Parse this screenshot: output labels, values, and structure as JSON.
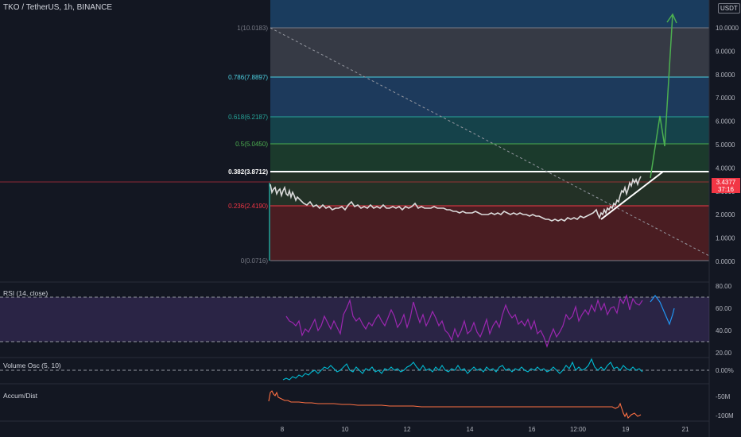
{
  "header": {
    "symbol_line": "TKO / TetherUS, 1h, BINANCE",
    "currency_badge": "USDT"
  },
  "price_axis": {
    "ticks": [
      "10.0000",
      "9.0000",
      "8.0000",
      "7.0000",
      "6.0000",
      "5.0000",
      "4.0000",
      "3.0000",
      "2.0000",
      "1.0000",
      "0.0000"
    ]
  },
  "last_price_badge": {
    "price": "3.4377",
    "countdown": "37:16",
    "color": "#f23645"
  },
  "fibonacci": {
    "levels": [
      {
        "label": "1(10.0183)",
        "value": 10.0183,
        "color": "#787b86"
      },
      {
        "label": "0.786(7.8897)",
        "value": 7.8897,
        "color": "#4dd0e1"
      },
      {
        "label": "0.618(6.2187)",
        "value": 6.2187,
        "color": "#26a69a"
      },
      {
        "label": "0.5(5.0450)",
        "value": 5.045,
        "color": "#4caf50"
      },
      {
        "label": "0.382(3.8712)",
        "value": 3.8712,
        "color": "#ffffff"
      },
      {
        "label": "0.236(2.4190)",
        "value": 2.419,
        "color": "#f23645"
      },
      {
        "label": "0(0.0716)",
        "value": 0.0716,
        "color": "#787b86"
      }
    ]
  },
  "time_axis": {
    "ticks": [
      "8",
      "10",
      "12",
      "14",
      "16",
      "12:00",
      "19",
      "21"
    ]
  },
  "indicators": {
    "rsi": {
      "label": "RSI (14, close)",
      "ticks": [
        "80.00",
        "60.00",
        "40.00",
        "20.00"
      ]
    },
    "volume_osc": {
      "label": "Volume Osc (5, 10)",
      "ticks": [
        "0.00%"
      ]
    },
    "accum_dist": {
      "label": "Accum/Dist",
      "ticks": [
        "-50M",
        "-100M"
      ]
    }
  },
  "colors": {
    "background": "#131722",
    "price_line": "#dadada",
    "projection_arrow": "#4caf50",
    "rsi_line": "#9c27b0",
    "rsi_projection": "#2196f3",
    "volume_osc_line": "#00bcd4",
    "accum_dist_line": "#ff7043"
  }
}
